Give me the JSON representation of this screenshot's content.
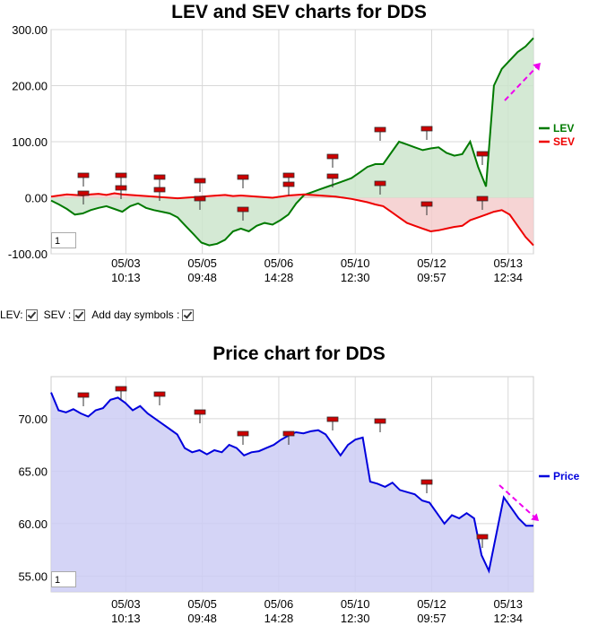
{
  "controls": {
    "lev_label": "LEV:",
    "sev_label": "SEV :",
    "day_symbols_label": "Add day symbols :"
  },
  "chart_data": [
    {
      "type": "area",
      "title": "LEV and SEV charts for DDS",
      "x_ticks": [
        "05/03 10:13",
        "05/05 09:48",
        "05/06 14:28",
        "05/10 12:30",
        "05/12 09:57",
        "05/13 12:34"
      ],
      "ylim": [
        -100,
        300
      ],
      "y_ticks": [
        "300.00",
        "200.00",
        "100.00",
        "0.00",
        "-100.00"
      ],
      "grid": true,
      "legend_position": "right",
      "zoom_value": "1",
      "series": [
        {
          "name": "LEV",
          "color": "#007a00",
          "fill": "#cce5cc",
          "values": [
            -5,
            -12,
            -20,
            -30,
            -28,
            -22,
            -18,
            -15,
            -20,
            -25,
            -15,
            -10,
            -18,
            -22,
            -25,
            -28,
            -35,
            -50,
            -65,
            -80,
            -85,
            -82,
            -75,
            -60,
            -55,
            -60,
            -50,
            -45,
            -48,
            -40,
            -30,
            -10,
            5,
            10,
            15,
            20,
            25,
            30,
            35,
            45,
            55,
            60,
            60,
            80,
            100,
            95,
            90,
            85,
            88,
            90,
            80,
            75,
            78,
            100,
            55,
            20,
            200,
            230,
            245,
            260,
            270,
            285
          ]
        },
        {
          "name": "SEV",
          "color": "#ee0000",
          "fill": "#f5cccc",
          "values": [
            2,
            4,
            6,
            5,
            4,
            6,
            7,
            5,
            8,
            6,
            5,
            4,
            3,
            2,
            1,
            0,
            -1,
            0,
            1,
            2,
            3,
            4,
            5,
            3,
            4,
            3,
            2,
            1,
            0,
            2,
            4,
            5,
            6,
            5,
            4,
            3,
            2,
            0,
            -2,
            -5,
            -8,
            -12,
            -15,
            -25,
            -35,
            -45,
            -50,
            -55,
            -60,
            -58,
            -55,
            -52,
            -50,
            -40,
            -35,
            -30,
            -25,
            -22,
            -30,
            -50,
            -70,
            -85
          ]
        }
      ]
    },
    {
      "type": "area",
      "title": "Price chart for DDS",
      "x_ticks": [
        "05/03 10:13",
        "05/05 09:48",
        "05/06 14:28",
        "05/10 12:30",
        "05/12 09:57",
        "05/13 12:34"
      ],
      "ylim": [
        53.5,
        74
      ],
      "y_ticks": [
        "70.00",
        "65.00",
        "60.00",
        "55.00"
      ],
      "grid": true,
      "legend_position": "right",
      "zoom_value": "1",
      "series": [
        {
          "name": "Price",
          "color": "#0000dd",
          "fill": "#ccccf5",
          "values": [
            72.5,
            70.8,
            70.6,
            70.9,
            70.5,
            70.2,
            70.8,
            71.0,
            71.8,
            72.0,
            71.5,
            70.8,
            71.2,
            70.5,
            70.0,
            69.5,
            69.0,
            68.5,
            67.2,
            66.8,
            67.0,
            66.6,
            67.0,
            66.8,
            67.5,
            67.2,
            66.5,
            66.8,
            66.9,
            67.2,
            67.5,
            68.0,
            68.4,
            68.7,
            68.6,
            68.8,
            68.9,
            68.5,
            67.5,
            66.5,
            67.5,
            68.0,
            68.2,
            64.0,
            63.8,
            63.5,
            63.9,
            63.2,
            63.0,
            62.8,
            62.2,
            62.0,
            61.0,
            60.0,
            60.8,
            60.5,
            61.0,
            60.5,
            57.0,
            55.5,
            59.0,
            62.5,
            61.5,
            60.5,
            59.8,
            59.8
          ]
        }
      ]
    }
  ]
}
